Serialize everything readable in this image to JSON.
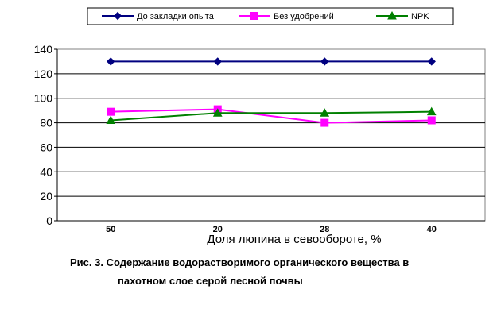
{
  "chart_data": {
    "type": "line",
    "categories": [
      "50",
      "20",
      "28",
      "40"
    ],
    "series": [
      {
        "name": "До закладки опыта",
        "values": [
          130,
          130,
          130,
          130
        ],
        "color": "#000080",
        "marker": "diamond"
      },
      {
        "name": "Без удобрений",
        "values": [
          89,
          91,
          80,
          82
        ],
        "color": "#ff00ff",
        "marker": "square"
      },
      {
        "name": "NPK",
        "values": [
          82,
          88,
          88,
          89
        ],
        "color": "#008000",
        "marker": "triangle"
      }
    ],
    "yticks": [
      "0",
      "20",
      "40",
      "60",
      "80",
      "100",
      "120",
      "140"
    ],
    "ylim": [
      0,
      140
    ],
    "xlabel": "Доля люпина в севообороте, %",
    "ylabel": "",
    "grid": true,
    "legend_position": "top"
  },
  "caption": {
    "line1": "Рис. 3. Содержание водорастворимого органического вещества в",
    "line2": "пахотном слое серой лесной почвы"
  }
}
